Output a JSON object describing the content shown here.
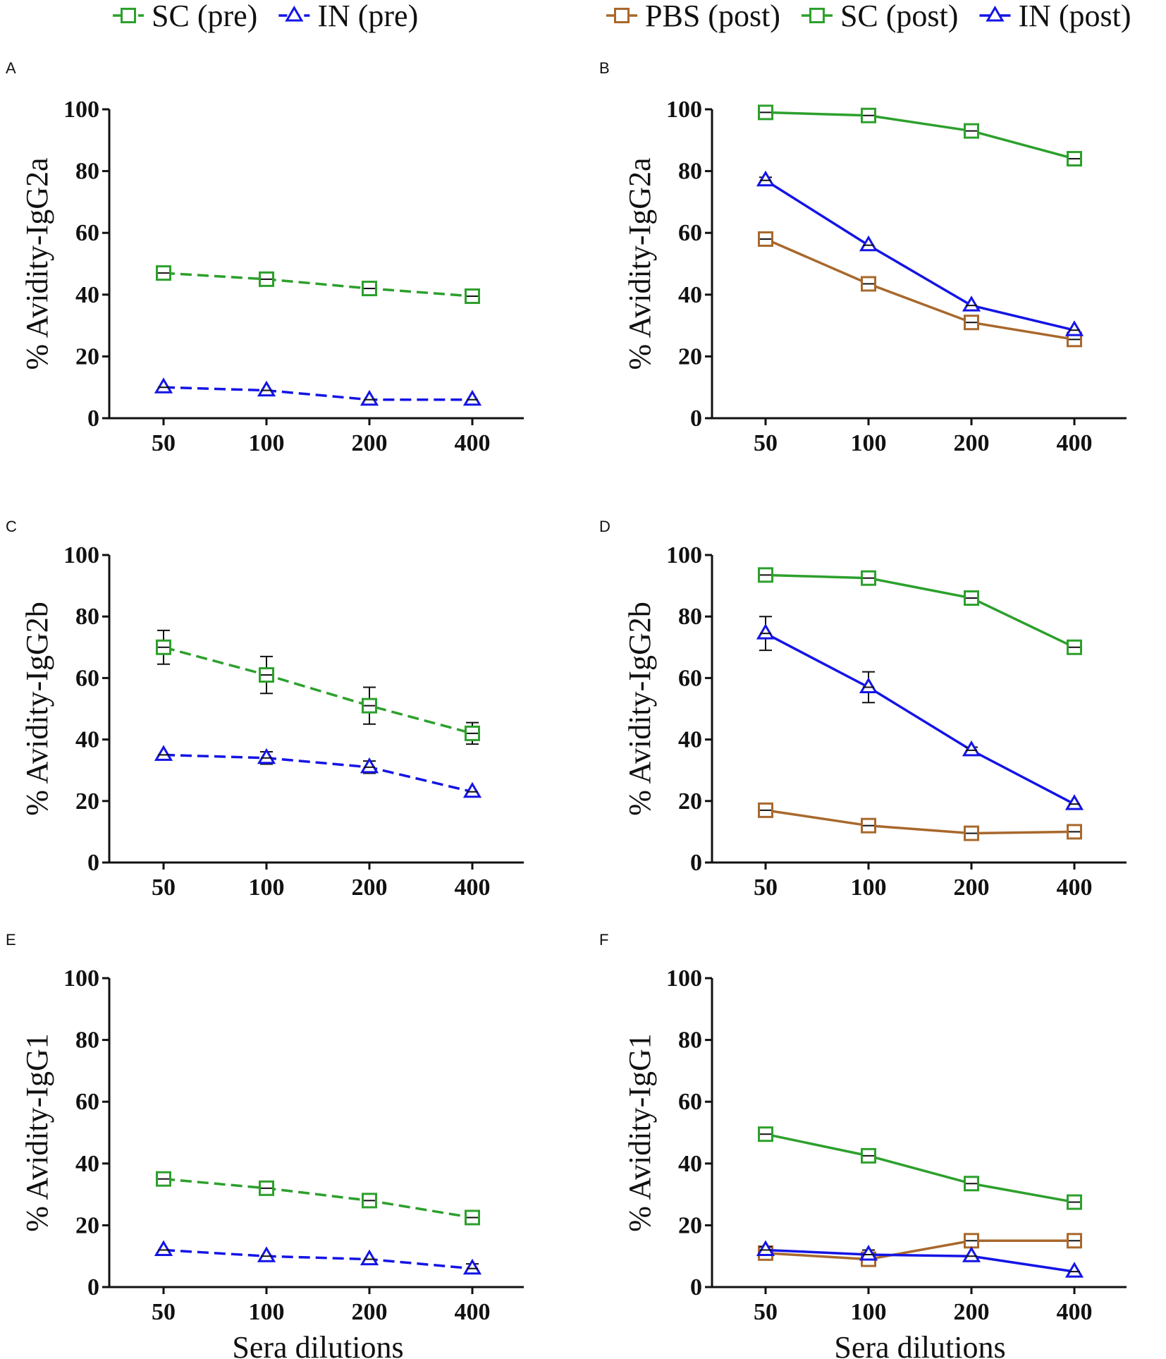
{
  "legend_pre": [
    {
      "label": "SC (pre)",
      "color": "#2ca02c",
      "marker": "square",
      "dash": true
    },
    {
      "label": "IN (pre)",
      "color": "#1414e6",
      "marker": "triangle",
      "dash": true
    }
  ],
  "legend_post": [
    {
      "label": "PBS (post)",
      "color": "#a8682c",
      "marker": "square",
      "dash": false
    },
    {
      "label": "SC (post)",
      "color": "#2ca02c",
      "marker": "square",
      "dash": false
    },
    {
      "label": "IN (post)",
      "color": "#1414e6",
      "marker": "triangle",
      "dash": false
    }
  ],
  "chart_data": [
    {
      "panel": "A",
      "type": "line",
      "ylabel": "% Avidity-IgG2a",
      "xlabel": "",
      "categories": [
        "50",
        "100",
        "200",
        "400"
      ],
      "ylim": [
        0,
        100
      ],
      "yticks": [
        "0",
        "20",
        "40",
        "60",
        "80",
        "100"
      ],
      "series": [
        {
          "name": "SC (pre)",
          "color": "#2ca02c",
          "marker": "square",
          "dash": true,
          "values": [
            47,
            45,
            42,
            39.5
          ],
          "err": [
            0,
            0,
            1.5,
            0
          ]
        },
        {
          "name": "IN (pre)",
          "color": "#1414e6",
          "marker": "triangle",
          "dash": true,
          "values": [
            10,
            9,
            6,
            6
          ],
          "err": [
            0,
            0,
            0,
            0
          ]
        }
      ]
    },
    {
      "panel": "B",
      "type": "line",
      "ylabel": "% Avidity-IgG2a",
      "xlabel": "",
      "categories": [
        "50",
        "100",
        "200",
        "400"
      ],
      "ylim": [
        0,
        100
      ],
      "yticks": [
        "0",
        "20",
        "40",
        "60",
        "80",
        "100"
      ],
      "series": [
        {
          "name": "PBS (post)",
          "color": "#a8682c",
          "marker": "square",
          "dash": false,
          "values": [
            58,
            43.5,
            31,
            25.5
          ],
          "err": [
            1.5,
            1,
            0,
            1.5
          ]
        },
        {
          "name": "SC (post)",
          "color": "#2ca02c",
          "marker": "square",
          "dash": false,
          "values": [
            99,
            98,
            93,
            84
          ],
          "err": [
            0,
            1.5,
            2,
            1.5
          ]
        },
        {
          "name": "IN (post)",
          "color": "#1414e6",
          "marker": "triangle",
          "dash": false,
          "values": [
            77,
            56,
            36.5,
            28.5
          ],
          "err": [
            1,
            0,
            0,
            0
          ]
        }
      ]
    },
    {
      "panel": "C",
      "type": "line",
      "ylabel": "% Avidity-IgG2b",
      "xlabel": "",
      "categories": [
        "50",
        "100",
        "200",
        "400"
      ],
      "ylim": [
        0,
        100
      ],
      "yticks": [
        "0",
        "20",
        "40",
        "60",
        "80",
        "100"
      ],
      "series": [
        {
          "name": "SC (pre)",
          "color": "#2ca02c",
          "marker": "square",
          "dash": true,
          "values": [
            70,
            61,
            51,
            42
          ],
          "err": [
            5.5,
            6,
            6,
            3.5
          ]
        },
        {
          "name": "IN (pre)",
          "color": "#1414e6",
          "marker": "triangle",
          "dash": true,
          "values": [
            35,
            34,
            31,
            23
          ],
          "err": [
            0,
            2,
            2,
            0
          ]
        }
      ]
    },
    {
      "panel": "D",
      "type": "line",
      "ylabel": "% Avidity-IgG2b",
      "xlabel": "",
      "categories": [
        "50",
        "100",
        "200",
        "400"
      ],
      "ylim": [
        0,
        100
      ],
      "yticks": [
        "0",
        "20",
        "40",
        "60",
        "80",
        "100"
      ],
      "series": [
        {
          "name": "PBS (post)",
          "color": "#a8682c",
          "marker": "square",
          "dash": false,
          "values": [
            17,
            12,
            9.5,
            10
          ],
          "err": [
            1,
            0,
            0,
            1
          ]
        },
        {
          "name": "SC (post)",
          "color": "#2ca02c",
          "marker": "square",
          "dash": false,
          "values": [
            93.5,
            92.5,
            86,
            70
          ],
          "err": [
            0,
            0,
            1,
            1
          ]
        },
        {
          "name": "IN (post)",
          "color": "#1414e6",
          "marker": "triangle",
          "dash": false,
          "values": [
            74.5,
            57,
            36.5,
            19
          ],
          "err": [
            5.5,
            5,
            1,
            0
          ]
        }
      ]
    },
    {
      "panel": "E",
      "type": "line",
      "ylabel": "% Avidity-IgG1",
      "xlabel": "Sera dilutions",
      "categories": [
        "50",
        "100",
        "200",
        "400"
      ],
      "ylim": [
        0,
        100
      ],
      "yticks": [
        "0",
        "20",
        "40",
        "60",
        "80",
        "100"
      ],
      "series": [
        {
          "name": "SC (pre)",
          "color": "#2ca02c",
          "marker": "square",
          "dash": true,
          "values": [
            35,
            32,
            28,
            22.5
          ],
          "err": [
            0,
            1.5,
            1,
            1
          ]
        },
        {
          "name": "IN (pre)",
          "color": "#1414e6",
          "marker": "triangle",
          "dash": true,
          "values": [
            12,
            10,
            9,
            6
          ],
          "err": [
            0,
            0,
            0,
            1.5
          ]
        }
      ]
    },
    {
      "panel": "F",
      "type": "line",
      "ylabel": "% Avidity-IgG1",
      "xlabel": "Sera dilutions",
      "categories": [
        "50",
        "100",
        "200",
        "400"
      ],
      "ylim": [
        0,
        100
      ],
      "yticks": [
        "0",
        "20",
        "40",
        "60",
        "80",
        "100"
      ],
      "series": [
        {
          "name": "PBS (post)",
          "color": "#a8682c",
          "marker": "square",
          "dash": false,
          "values": [
            11,
            9,
            15,
            15
          ],
          "err": [
            1,
            1.5,
            0,
            1
          ]
        },
        {
          "name": "SC (post)",
          "color": "#2ca02c",
          "marker": "square",
          "dash": false,
          "values": [
            49.5,
            42.5,
            33.5,
            27.5
          ],
          "err": [
            0,
            1.5,
            0,
            0
          ]
        },
        {
          "name": "IN (post)",
          "color": "#1414e6",
          "marker": "triangle",
          "dash": false,
          "values": [
            12,
            10.5,
            10,
            5
          ],
          "err": [
            1,
            1.5,
            0,
            0
          ]
        }
      ]
    }
  ]
}
